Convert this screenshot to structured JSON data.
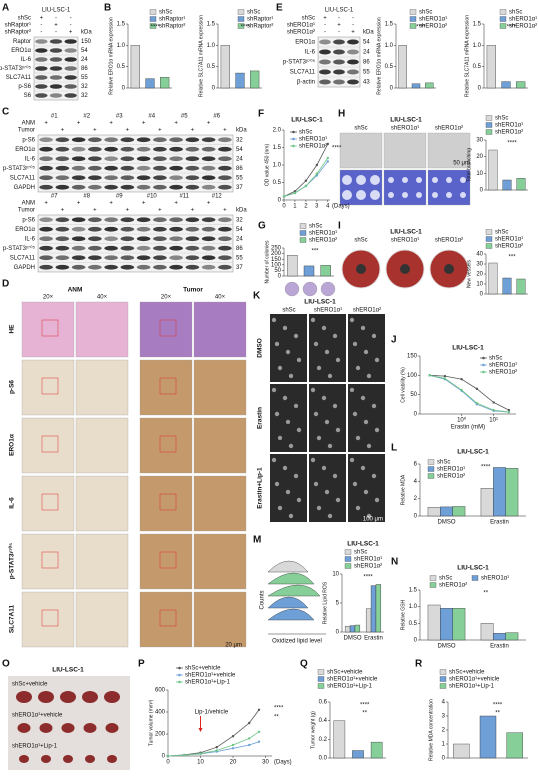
{
  "panel_letters": [
    "A",
    "B",
    "C",
    "D",
    "E",
    "F",
    "G",
    "H",
    "I",
    "J",
    "K",
    "L",
    "M",
    "N",
    "O",
    "P",
    "Q",
    "R"
  ],
  "blot_A": {
    "title": "LIU-LSC-1",
    "unit": "kDa",
    "lanes": [
      {
        "name": "shSc",
        "signs": [
          "+",
          "-",
          "-"
        ]
      },
      {
        "name": "shRaptor¹",
        "signs": [
          "-",
          "+",
          "-"
        ]
      },
      {
        "name": "shRaptor²",
        "signs": [
          "-",
          "-",
          "+"
        ]
      }
    ],
    "proteins": [
      {
        "name": "Raptor",
        "kda": 150
      },
      {
        "name": "ERO1α",
        "kda": 54
      },
      {
        "name": "IL-6",
        "kda": 24
      },
      {
        "name": "p-STAT3ʸ⁷⁰⁵",
        "kda": 86
      },
      {
        "name": "SLC7A11",
        "kda": 55
      },
      {
        "name": "p-S6",
        "kda": 32
      },
      {
        "name": "S6",
        "kda": 32
      }
    ]
  },
  "blot_C": [
    {
      "unit": "kDa",
      "samples": [
        "#1",
        "#2",
        "#3",
        "#4",
        "#5",
        "#6"
      ],
      "lanes": [
        {
          "name": "ANM",
          "signs": [
            "+",
            "+",
            "+",
            "+",
            "+",
            "+"
          ]
        },
        {
          "name": "Tumor",
          "signs": [
            "+",
            "+",
            "+",
            "+",
            "+",
            "+"
          ]
        }
      ],
      "proteins": [
        {
          "name": "p-S6",
          "kda": 32
        },
        {
          "name": "ERO1α",
          "kda": 54
        },
        {
          "name": "IL-6",
          "kda": 24
        },
        {
          "name": "p-STAT3ʸ⁷⁰⁵",
          "kda": 86
        },
        {
          "name": "SLC7A11",
          "kda": 55
        },
        {
          "name": "GAPDH",
          "kda": 37
        }
      ]
    },
    {
      "unit": "kDa",
      "samples": [
        "#7",
        "#8",
        "#9",
        "#10",
        "#11",
        "#12"
      ],
      "lanes": [
        {
          "name": "ANM",
          "signs": [
            "+",
            "+",
            "+",
            "+",
            "+",
            "+"
          ]
        },
        {
          "name": "Tumor",
          "signs": [
            "+",
            "+",
            "+",
            "+",
            "+",
            "+"
          ]
        }
      ],
      "proteins": [
        {
          "name": "p-S6",
          "kda": 32
        },
        {
          "name": "ERO1α",
          "kda": 54
        },
        {
          "name": "IL-6",
          "kda": 24
        },
        {
          "name": "p-STAT3ʸ⁷⁰⁵",
          "kda": 86
        },
        {
          "name": "SLC7A11",
          "kda": 55
        },
        {
          "name": "GAPDH",
          "kda": 37
        }
      ]
    }
  ],
  "blot_E": {
    "title": "LIU-LSC-1",
    "unit": "kDa",
    "lanes": [
      {
        "name": "shSc",
        "signs": [
          "+",
          "-",
          "-"
        ]
      },
      {
        "name": "shERO1α¹",
        "signs": [
          "-",
          "+",
          "-"
        ]
      },
      {
        "name": "shERO1α²",
        "signs": [
          "-",
          "-",
          "+"
        ]
      }
    ],
    "proteins": [
      {
        "name": "ERO1α",
        "kda": 54
      },
      {
        "name": "IL-6",
        "kda": 24
      },
      {
        "name": "p-STAT3ʸ⁷⁰⁵",
        "kda": 86
      },
      {
        "name": "SLC7A11",
        "kda": 55
      },
      {
        "name": "β-actin",
        "kda": 43
      }
    ]
  },
  "ihc_D": {
    "groups": [
      {
        "name": "ANM",
        "magnifications": [
          "20×",
          "40×"
        ]
      },
      {
        "name": "Tumor",
        "magnifications": [
          "20×",
          "40×"
        ]
      }
    ],
    "rows": [
      "HE",
      "p-S6",
      "ERO1α",
      "IL-6",
      "p-STAT3ʸ⁷⁰⁵",
      "SLC7A11"
    ],
    "scale": "20 μm"
  },
  "tube_H": {
    "title": "LIU-LSC-1",
    "columns": [
      "shSc",
      "shERO1α¹",
      "shERO1α²"
    ],
    "scale": "50 μm"
  },
  "cam_I": {
    "title": "LIU-LSC-1",
    "columns": [
      "shSc",
      "shERO1α¹",
      "shERO1α²"
    ]
  },
  "cells_K": {
    "title": "LIU-LSC-1",
    "columns": [
      "shSc",
      "shERO1α¹",
      "shERO1α²"
    ],
    "rows": [
      "DMSO",
      "Erastin",
      "Erastin+Lip-1"
    ],
    "scale": "100 μm"
  },
  "flow_M": {
    "y_label": "Counts",
    "x_label": "Oxidized lipid level"
  },
  "tumor_O": {
    "title": "LIU-LSC-1",
    "rows": [
      "shSc+vehicle",
      "shERO1α¹+vehicle",
      "shERO1α¹+Lip-1"
    ]
  },
  "chart_data": [
    {
      "type": "bar",
      "y_label": "Relative ERO1α mRNA expression",
      "categories": [
        "shSc",
        "shRaptor¹",
        "shRaptor²"
      ],
      "values": [
        1,
        0.22,
        0.25
      ],
      "colors": [
        "#d9d9d9",
        "#6e9fd6",
        "#86cf98"
      ],
      "ylim": [
        0,
        1.5
      ],
      "yticks": [
        0,
        0.5,
        {
          "value": 1,
          "label": "1.0"
        },
        1.5
      ],
      "annotations": [
        "****"
      ]
    },
    {
      "type": "bar",
      "y_label": "Relative SLC7A11 mRNA expression",
      "categories": [
        "shSc",
        "shRaptor¹",
        "shRaptor²"
      ],
      "values": [
        1,
        0.35,
        0.4
      ],
      "colors": [
        "#d9d9d9",
        "#6e9fd6",
        "#86cf98"
      ],
      "ylim": [
        0,
        1.5
      ],
      "yticks": [
        0,
        0.5,
        {
          "value": 1,
          "label": "1.0"
        },
        1.5
      ],
      "annotations": [
        "****"
      ]
    },
    {
      "type": "bar",
      "y_label": "Relative ERO1α mRNA expression",
      "categories": [
        "shSc",
        "shERO1α¹",
        "shERO1α²"
      ],
      "values": [
        1,
        0.1,
        0.12
      ],
      "colors": [
        "#d9d9d9",
        "#6e9fd6",
        "#86cf98"
      ],
      "ylim": [
        0,
        1.5
      ],
      "yticks": [
        0,
        0.5,
        {
          "value": 1,
          "label": "1.0"
        },
        1.5
      ],
      "annotations": [
        "****"
      ]
    },
    {
      "type": "bar",
      "y_label": "Relative SLC7A11 mRNA expression",
      "categories": [
        "shSc",
        "shERO1α¹",
        "shERO1α²"
      ],
      "values": [
        1,
        0.15,
        0.15
      ],
      "colors": [
        "#d9d9d9",
        "#6e9fd6",
        "#86cf98"
      ],
      "ylim": [
        0,
        1.5
      ],
      "yticks": [
        0,
        0.5,
        {
          "value": 1,
          "label": "1.0"
        },
        1.5
      ],
      "annotations": [
        "****"
      ]
    },
    {
      "type": "line",
      "title": "LIU-LSC-1",
      "y_label": "OD value 450 (nm)",
      "x_label": "(Days)",
      "x": [
        0,
        1,
        2,
        3,
        4
      ],
      "xlim": [
        0,
        4.2
      ],
      "xticks": [
        0,
        1,
        2,
        3,
        4
      ],
      "ylim": [
        0,
        2
      ],
      "yticks": [
        0,
        0.5,
        {
          "value": 1,
          "label": "1.0"
        },
        1.5,
        {
          "value": 2,
          "label": "2.0"
        }
      ],
      "series": [
        {
          "name": "shSc",
          "color": "#555555",
          "values": [
            0.1,
            0.25,
            0.55,
            1.0,
            1.6
          ]
        },
        {
          "name": "shERO1α¹",
          "color": "#6e9fd6",
          "values": [
            0.1,
            0.2,
            0.4,
            0.7,
            1.1
          ]
        },
        {
          "name": "shERO1α²",
          "color": "#6cc585",
          "values": [
            0.1,
            0.2,
            0.4,
            0.75,
            1.2
          ]
        }
      ],
      "annotations": [
        "****"
      ]
    },
    {
      "type": "bar",
      "y_label": "Number of colonies",
      "categories": [
        "shSc",
        "shERO1α¹",
        "shERO1α²"
      ],
      "values": [
        185,
        90,
        95
      ],
      "colors": [
        "#d9d9d9",
        "#6e9fd6",
        "#86cf98"
      ],
      "ylim": [
        0,
        250
      ],
      "yticks": [
        0,
        50,
        100,
        150,
        200,
        250
      ],
      "annotations": [
        "***"
      ]
    },
    {
      "type": "bar",
      "y_label": "Total branching",
      "categories": [
        "shSc",
        "shERO1α¹",
        "shERO1α²"
      ],
      "values": [
        24,
        6,
        7
      ],
      "colors": [
        "#d9d9d9",
        "#6e9fd6",
        "#86cf98"
      ],
      "ylim": [
        0,
        30
      ],
      "yticks": [
        0,
        10,
        20,
        30
      ],
      "annotations": [
        "****"
      ]
    },
    {
      "type": "bar",
      "y_label": "New vessels",
      "categories": [
        "shSc",
        "shERO1α¹",
        "shERO1α²"
      ],
      "values": [
        31,
        16,
        15
      ],
      "colors": [
        "#d9d9d9",
        "#6e9fd6",
        "#86cf98"
      ],
      "ylim": [
        0,
        40
      ],
      "yticks": [
        0,
        10,
        20,
        30,
        40
      ],
      "annotations": [
        "***"
      ]
    },
    {
      "type": "line",
      "title": "LIU-LSC-1",
      "y_label": "Cell viability (%)",
      "x_label": "Erastin (mM)",
      "log_x": true,
      "x": [
        0.1,
        0.3,
        1,
        3,
        10,
        30
      ],
      "xlim": [
        0.05,
        50
      ],
      "xticks": [
        {
          "value": 1,
          "label": "10⁰"
        },
        {
          "value": 10,
          "label": "10¹"
        }
      ],
      "ylim": [
        0,
        150
      ],
      "yticks": [
        0,
        50,
        100,
        150
      ],
      "series": [
        {
          "name": "shSc",
          "color": "#555555",
          "values": [
            100,
            98,
            90,
            65,
            30,
            10
          ]
        },
        {
          "name": "shERO1α¹",
          "color": "#6e9fd6",
          "values": [
            100,
            90,
            60,
            25,
            8,
            5
          ]
        },
        {
          "name": "shERO1α²",
          "color": "#6cc585",
          "values": [
            100,
            92,
            62,
            28,
            10,
            5
          ]
        }
      ]
    },
    {
      "type": "grouped_bar",
      "title": "LIU-LSC-1",
      "y_label": "Relative MDA",
      "categories": [
        "DMSO",
        "Erastin"
      ],
      "ylim": [
        0,
        6
      ],
      "yticks": [
        0,
        2,
        4,
        6
      ],
      "series": [
        {
          "name": "shSc",
          "color": "#d9d9d9",
          "values": [
            1.0,
            3.2
          ]
        },
        {
          "name": "shERO1α¹",
          "color": "#6e9fd6",
          "values": [
            1.05,
            5.6
          ]
        },
        {
          "name": "shERO1α²",
          "color": "#86cf98",
          "values": [
            1.1,
            5.5
          ]
        }
      ],
      "annotations": [
        "****"
      ]
    },
    {
      "type": "grouped_bar",
      "title": "LIU-LSC-1",
      "y_label": "Relative Lipid ROS",
      "categories": [
        "DMSO",
        "Erastin"
      ],
      "ylim": [
        0,
        10
      ],
      "yticks": [
        0,
        5,
        10
      ],
      "series": [
        {
          "name": "shSc",
          "color": "#d9d9d9",
          "values": [
            1,
            4
          ]
        },
        {
          "name": "shERO1α¹",
          "color": "#6e9fd6",
          "values": [
            1.1,
            8
          ]
        },
        {
          "name": "shERO1α²",
          "color": "#86cf98",
          "values": [
            1.2,
            8.2
          ]
        }
      ],
      "annotations": [
        "****"
      ]
    },
    {
      "type": "grouped_bar",
      "title": "LIU-LSC-1",
      "y_label": "Relative GSH",
      "categories": [
        "DMSO",
        "Erastin"
      ],
      "ylim": [
        0,
        1.5
      ],
      "yticks": [
        0,
        0.5,
        {
          "value": 1,
          "label": "1.0"
        },
        1.5
      ],
      "legend_columns": 2,
      "series": [
        {
          "name": "shSc",
          "color": "#d9d9d9",
          "values": [
            1.05,
            0.5
          ]
        },
        {
          "name": "shERO1α¹",
          "color": "#6e9fd6",
          "values": [
            0.95,
            0.2
          ]
        },
        {
          "name": "shERO1α²",
          "color": "#86cf98",
          "values": [
            0.95,
            0.22
          ]
        }
      ],
      "annotations": [
        "**"
      ]
    },
    {
      "type": "line",
      "y_label": "Tumor volume (mm³)",
      "x_label": "(Days)",
      "x": [
        0,
        5,
        10,
        15,
        20,
        25,
        28
      ],
      "xlim": [
        0,
        32
      ],
      "xticks": [
        0,
        10,
        20,
        30
      ],
      "ylim": [
        0,
        600
      ],
      "yticks": [
        0,
        200,
        400,
        600
      ],
      "series": [
        {
          "name": "shSc+vehicle",
          "color": "#555555",
          "values": [
            0,
            10,
            30,
            80,
            180,
            300,
            420
          ]
        },
        {
          "name": "shERO1α¹+vehicle",
          "color": "#6e9fd6",
          "values": [
            0,
            8,
            20,
            40,
            70,
            100,
            130
          ]
        },
        {
          "name": "shERO1α¹+Lip-1",
          "color": "#6cc585",
          "values": [
            0,
            8,
            22,
            50,
            100,
            160,
            220
          ]
        }
      ],
      "annotations": [
        "****",
        "**"
      ],
      "marker_label": "Lip-1/vehicle",
      "marker_x": 10
    },
    {
      "type": "bar",
      "y_label": "Tumor weight (g)",
      "categories": [
        "shSc+vehicle",
        "shERO1α¹+vehicle",
        "shERO1α¹+Lip-1"
      ],
      "values": [
        0.4,
        0.08,
        0.17
      ],
      "colors": [
        "#d9d9d9",
        "#6e9fd6",
        "#86cf98"
      ],
      "ylim": [
        0,
        0.6
      ],
      "yticks": [
        {
          "value": 0,
          "label": "0.0"
        },
        0.2,
        0.4,
        0.6
      ],
      "annotations": [
        "****",
        "**"
      ]
    },
    {
      "type": "bar",
      "y_label": "Relative MDA concentration",
      "categories": [
        "shSc+vehicle",
        "shERO1α¹+vehicle",
        "shERO1α¹+Lip-1"
      ],
      "values": [
        1.0,
        3.0,
        1.8
      ],
      "colors": [
        "#d9d9d9",
        "#6e9fd6",
        "#86cf98"
      ],
      "ylim": [
        0,
        4
      ],
      "yticks": [
        0,
        1,
        2,
        3,
        4
      ],
      "annotations": [
        "****",
        "**"
      ]
    }
  ]
}
